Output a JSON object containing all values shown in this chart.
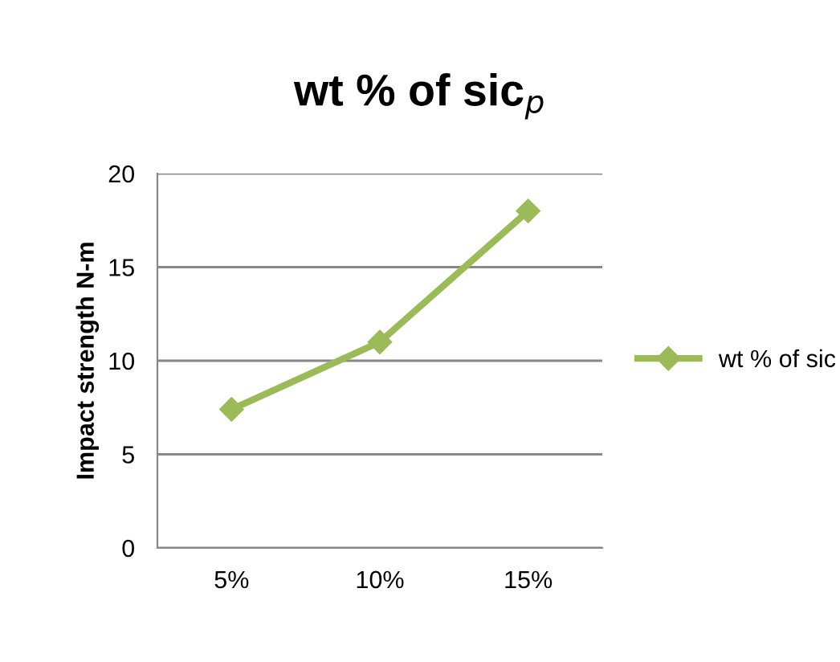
{
  "chart_data": {
    "type": "line",
    "title": "wt % of sic$_{p}$",
    "ylabel": "Impact strength N-m",
    "categories": [
      "5%",
      "10%",
      "15%"
    ],
    "series": [
      {
        "name": "wt % of sic",
        "color": "#9bbb59",
        "values": [
          7.4,
          11.0,
          18.0
        ]
      }
    ],
    "ylim": [
      0,
      20
    ],
    "yticks": [
      0,
      5,
      10,
      15,
      20
    ],
    "grid": "y",
    "legend": "right",
    "marker": "diamond",
    "line_style": "solid"
  }
}
